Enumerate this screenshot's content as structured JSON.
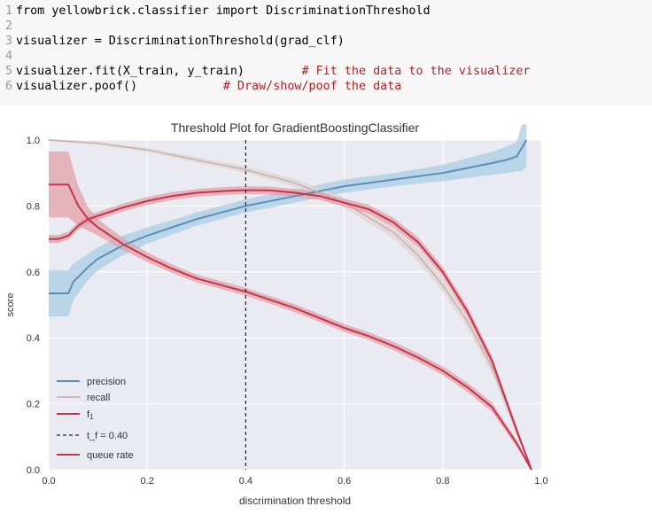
{
  "code_cell": {
    "lines": [
      {
        "num": "1",
        "code": "from yellowbrick.classifier import DiscriminationThreshold",
        "comment": ""
      },
      {
        "num": "2",
        "code": "",
        "comment": ""
      },
      {
        "num": "3",
        "code": "visualizer = DiscriminationThreshold(grad_clf)",
        "comment": ""
      },
      {
        "num": "4",
        "code": "",
        "comment": ""
      },
      {
        "num": "5",
        "code": "visualizer.fit(X_train, y_train)        ",
        "comment": "# Fit the data to the visualizer"
      },
      {
        "num": "6",
        "code": "visualizer.poof()            ",
        "comment": "# Draw/show/poof the data"
      }
    ]
  },
  "chart_data": {
    "type": "line",
    "title": "Threshold Plot for GradientBoostingClassifier",
    "xlabel": "discrimination threshold",
    "ylabel": "score",
    "xlim": [
      0,
      1
    ],
    "ylim": [
      0,
      1
    ],
    "x_ticks": [
      "0.0",
      "0.2",
      "0.4",
      "0.6",
      "0.8",
      "1.0"
    ],
    "y_ticks": [
      "0.0",
      "0.2",
      "0.4",
      "0.6",
      "0.8",
      "1.0"
    ],
    "grid": true,
    "legend_position": "bottom-left",
    "threshold": {
      "value": 0.4,
      "label": "t_f = 0.40"
    },
    "series": [
      {
        "name": "precision",
        "color": "#5b8fb9",
        "band_color": "#a9cde4",
        "x": [
          0,
          0.02,
          0.04,
          0.05,
          0.08,
          0.1,
          0.15,
          0.2,
          0.25,
          0.3,
          0.35,
          0.4,
          0.45,
          0.5,
          0.55,
          0.6,
          0.65,
          0.7,
          0.75,
          0.8,
          0.85,
          0.9,
          0.93,
          0.95,
          0.96,
          0.97
        ],
        "values": [
          0.535,
          0.535,
          0.535,
          0.57,
          0.615,
          0.64,
          0.68,
          0.71,
          0.735,
          0.76,
          0.78,
          0.8,
          0.815,
          0.83,
          0.845,
          0.86,
          0.87,
          0.88,
          0.89,
          0.9,
          0.915,
          0.93,
          0.94,
          0.95,
          0.975,
          1.0
        ],
        "band": [
          0.07,
          0.07,
          0.07,
          0.055,
          0.04,
          0.035,
          0.03,
          0.025,
          0.022,
          0.02,
          0.02,
          0.02,
          0.02,
          0.02,
          0.02,
          0.02,
          0.02,
          0.02,
          0.022,
          0.025,
          0.03,
          0.035,
          0.04,
          0.045,
          0.07,
          0.08
        ]
      },
      {
        "name": "recall",
        "color": "#c9a5a5",
        "band_color": "#ddd6d2",
        "x": [
          0,
          0.1,
          0.2,
          0.3,
          0.4,
          0.5,
          0.6,
          0.7,
          0.75,
          0.8,
          0.85,
          0.9,
          0.95,
          0.98
        ],
        "values": [
          1.0,
          0.99,
          0.97,
          0.94,
          0.91,
          0.87,
          0.81,
          0.72,
          0.65,
          0.56,
          0.45,
          0.31,
          0.12,
          0.0
        ],
        "band": [
          0.003,
          0.005,
          0.006,
          0.008,
          0.01,
          0.012,
          0.015,
          0.018,
          0.02,
          0.02,
          0.02,
          0.02,
          0.015,
          0.005
        ]
      },
      {
        "name": "f1",
        "color": "#c4344c",
        "band_color": "#e2a0aa",
        "x": [
          0,
          0.02,
          0.04,
          0.06,
          0.08,
          0.1,
          0.15,
          0.2,
          0.25,
          0.3,
          0.35,
          0.4,
          0.45,
          0.5,
          0.55,
          0.6,
          0.65,
          0.7,
          0.75,
          0.8,
          0.85,
          0.9,
          0.95,
          0.98
        ],
        "values": [
          0.7,
          0.7,
          0.71,
          0.74,
          0.76,
          0.77,
          0.795,
          0.815,
          0.83,
          0.84,
          0.845,
          0.848,
          0.847,
          0.84,
          0.83,
          0.81,
          0.79,
          0.75,
          0.69,
          0.6,
          0.48,
          0.33,
          0.12,
          0.0
        ],
        "band": [
          0.012,
          0.012,
          0.012,
          0.012,
          0.012,
          0.012,
          0.012,
          0.012,
          0.012,
          0.012,
          0.012,
          0.012,
          0.012,
          0.012,
          0.012,
          0.012,
          0.013,
          0.014,
          0.015,
          0.015,
          0.015,
          0.015,
          0.012,
          0.005
        ]
      },
      {
        "name": "queue rate",
        "color": "#c4344c",
        "band_color": "#e2a0aa",
        "x": [
          0,
          0.02,
          0.04,
          0.06,
          0.08,
          0.1,
          0.15,
          0.2,
          0.25,
          0.3,
          0.35,
          0.4,
          0.45,
          0.5,
          0.55,
          0.6,
          0.65,
          0.7,
          0.75,
          0.8,
          0.85,
          0.9,
          0.95,
          0.98
        ],
        "values": [
          0.865,
          0.865,
          0.865,
          0.8,
          0.76,
          0.735,
          0.685,
          0.645,
          0.61,
          0.58,
          0.56,
          0.54,
          0.515,
          0.49,
          0.46,
          0.43,
          0.405,
          0.375,
          0.34,
          0.3,
          0.25,
          0.19,
          0.08,
          0.0
        ],
        "band": [
          0.1,
          0.1,
          0.1,
          0.06,
          0.035,
          0.025,
          0.018,
          0.015,
          0.013,
          0.012,
          0.012,
          0.012,
          0.012,
          0.012,
          0.012,
          0.012,
          0.012,
          0.013,
          0.013,
          0.013,
          0.014,
          0.014,
          0.01,
          0.003
        ]
      }
    ]
  }
}
